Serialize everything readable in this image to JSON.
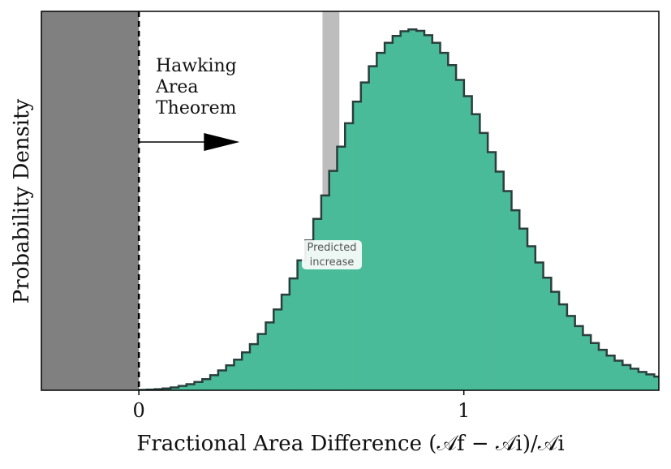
{
  "chart_data": {
    "type": "area",
    "title": "",
    "xlabel": "Fractional Area Difference (𝒜f − 𝒜i)/𝒜i",
    "ylabel": "Probability Density",
    "xlim": [
      -0.3,
      1.6
    ],
    "ylim": [
      0,
      1.05
    ],
    "xticks": [
      {
        "value": 0,
        "label": "0"
      },
      {
        "value": 1,
        "label": "1"
      }
    ],
    "grid": false,
    "colors": {
      "histogram_fill": "#4abb98",
      "histogram_edge": "#2a3f3d",
      "excluded_region": "#808080",
      "prediction_band": "#bdbdbd"
    },
    "excluded_region": {
      "from": -0.3,
      "to": 0.0
    },
    "threshold_line": {
      "x": 0.0,
      "style": "dashed"
    },
    "annotation": {
      "lines": [
        "Hawking",
        "Area",
        "Theorem"
      ],
      "arrow_from_x": 0.0,
      "arrow_to_x": 0.31
    },
    "prediction_band": {
      "from": 0.565,
      "to": 0.617,
      "label_lines": [
        "Predicted",
        "increase"
      ]
    },
    "histogram": {
      "bin_width": 0.0244,
      "bin_start": 0.0,
      "values": [
        0.001,
        0.002,
        0.003,
        0.005,
        0.008,
        0.012,
        0.017,
        0.023,
        0.031,
        0.042,
        0.055,
        0.069,
        0.085,
        0.105,
        0.128,
        0.156,
        0.188,
        0.224,
        0.265,
        0.31,
        0.36,
        0.415,
        0.475,
        0.54,
        0.608,
        0.675,
        0.74,
        0.8,
        0.853,
        0.898,
        0.935,
        0.963,
        0.982,
        0.995,
        1.0,
        0.996,
        0.984,
        0.963,
        0.935,
        0.901,
        0.86,
        0.815,
        0.765,
        0.713,
        0.66,
        0.606,
        0.552,
        0.499,
        0.448,
        0.399,
        0.354,
        0.312,
        0.273,
        0.238,
        0.206,
        0.178,
        0.153,
        0.131,
        0.112,
        0.096,
        0.082,
        0.07,
        0.06,
        0.051,
        0.044,
        0.038
      ]
    }
  }
}
